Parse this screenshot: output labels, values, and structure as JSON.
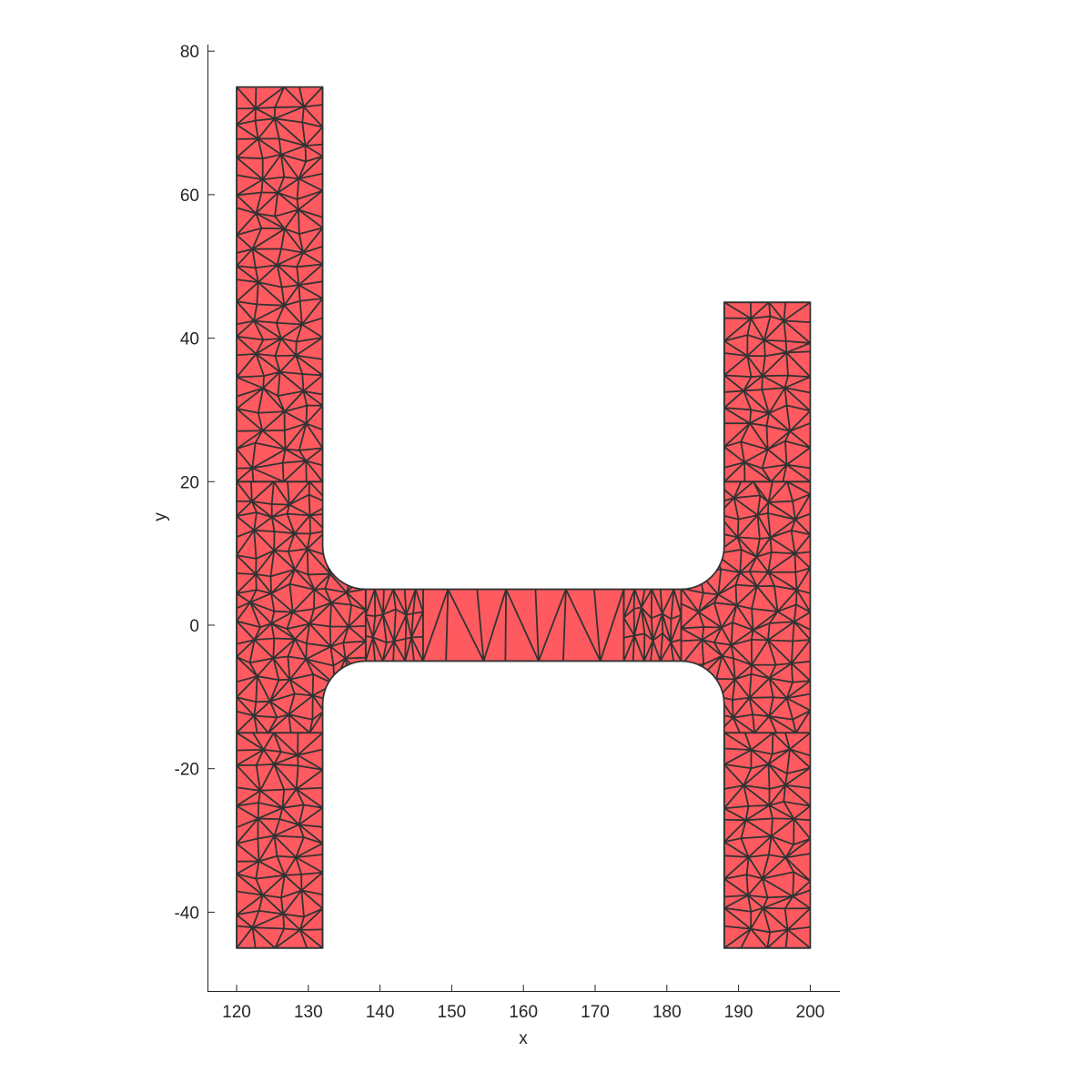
{
  "chart_data": {
    "type": "mesh",
    "title": "",
    "xlabel": "x",
    "ylabel": "y",
    "xlim": [
      116,
      204
    ],
    "ylim": [
      -51,
      81
    ],
    "x_ticks": [
      120,
      130,
      140,
      150,
      160,
      170,
      180,
      190,
      200
    ],
    "y_ticks": [
      -40,
      -20,
      0,
      20,
      40,
      60,
      80
    ],
    "x_tick_labels": [
      "120",
      "130",
      "140",
      "150",
      "160",
      "170",
      "180",
      "190",
      "200"
    ],
    "y_tick_labels": [
      "-40",
      "-20",
      "0",
      "20",
      "40",
      "60",
      "80"
    ],
    "grid": false,
    "face_color": "#FF5A5F",
    "edge_color": "#333333",
    "geometry": {
      "left_flange": {
        "x": [
          120,
          132
        ],
        "y": [
          -45,
          75
        ]
      },
      "right_flange": {
        "x": [
          188,
          200
        ],
        "y": [
          -45,
          45
        ]
      },
      "web": {
        "x": [
          132,
          188
        ],
        "y": [
          -5,
          5
        ]
      },
      "fillet_radius": 6
    }
  }
}
